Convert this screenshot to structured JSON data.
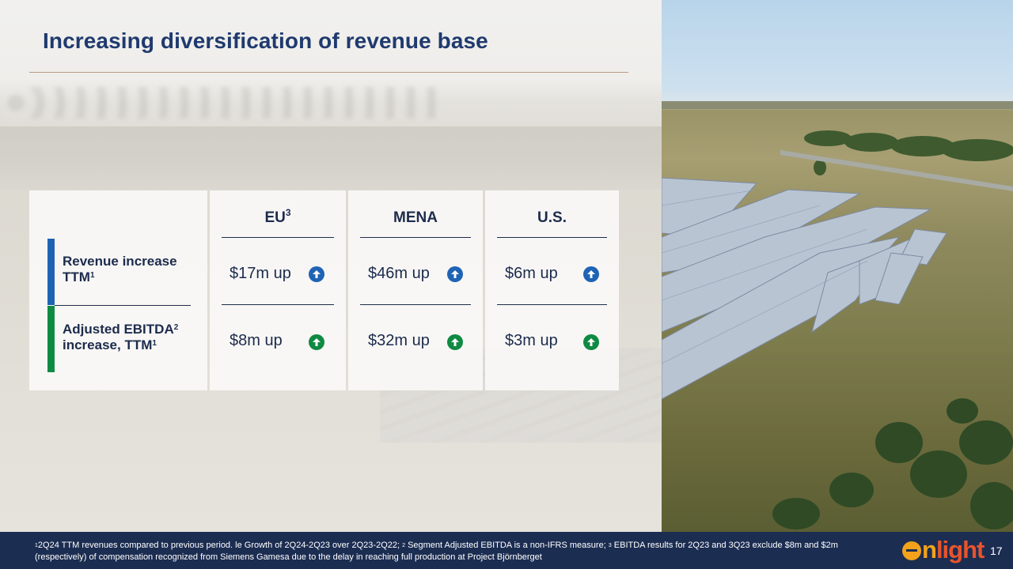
{
  "slide": {
    "title": "Increasing diversification of revenue base",
    "page_number": "17"
  },
  "table": {
    "columns": [
      {
        "label": "EU",
        "sup": "3"
      },
      {
        "label": "MENA",
        "sup": ""
      },
      {
        "label": "U.S.",
        "sup": ""
      }
    ],
    "rows": [
      {
        "label_line1": "Revenue increase",
        "label_line2": "TTM",
        "label_line2_sup": "1",
        "label_line1_sup": "",
        "values": [
          "$17m up",
          "$46m up",
          "$6m up"
        ],
        "accent_color": "#1f63b5"
      },
      {
        "label_line1": "Adjusted EBITDA",
        "label_line1_sup": "2",
        "label_line2": "increase, TTM",
        "label_line2_sup": "1",
        "values": [
          "$8m up",
          "$32m up",
          "$3m up"
        ],
        "accent_color": "#0f8a43"
      }
    ],
    "arrow_icon": "arrow-up-circle-icon"
  },
  "footer": {
    "note1_sup": "1",
    "note1": "2Q24 TTM revenues compared to previous period. le Growth of 2Q24-2Q23 over 2Q23-2Q22; ",
    "note2_sup": "2",
    "note2": " Segment Adjusted EBITDA is a non-IFRS measure; ",
    "note3_sup": "3",
    "note3": " EBITDA results for 2Q23 and 3Q23 exclude $8m and $2m (respectively) of compensation recognized from Siemens Gamesa due to the delay in reaching full production at Project Björnberget",
    "logo_text": "enlight",
    "logo_colors": {
      "orange": "#f3a21a",
      "red": "#e8542c"
    },
    "background": "#1c2d52"
  }
}
